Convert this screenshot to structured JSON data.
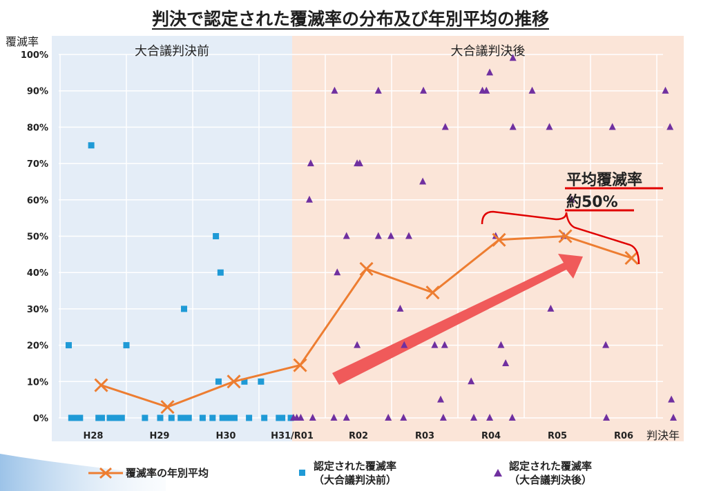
{
  "title": "判決で認定された覆滅率の分布及び年別平均の推移",
  "colors": {
    "panel_left": "#e4edf7",
    "panel_right": "#fbe5d8",
    "average_line": "#ed7d31",
    "square_marker": "#1f9ad6",
    "triangle_marker": "#7030a0",
    "grid": "#ffffff",
    "arrow": "#f05a5a",
    "bracket": "#e00000"
  },
  "legend": {
    "avg": "覆滅率の年別平均",
    "sq_line1": "認定された覆滅率",
    "sq_line2": "（大合議判決前）",
    "tri_line1": "認定された覆滅率",
    "tri_line2": "（大合議判決後）"
  },
  "annotation": {
    "line1": "平均覆滅率",
    "line2": "約50%"
  },
  "chart_data": {
    "type": "scatter",
    "title": "判決で認定された覆滅率の分布及び年別平均の推移",
    "ylabel": "覆滅率",
    "xlabel": "判決年",
    "categories": [
      "H28",
      "H29",
      "H30",
      "H31/R01",
      "R02",
      "R03",
      "R04",
      "R05",
      "R06"
    ],
    "ylim": [
      0,
      100
    ],
    "yticks": [
      "0%",
      "10%",
      "20%",
      "30%",
      "40%",
      "50%",
      "60%",
      "70%",
      "80%",
      "90%",
      "100%"
    ],
    "grid": true,
    "legend_position": "bottom",
    "periods": [
      {
        "label": "大合議判決前",
        "range": [
          -0.5,
          3.0
        ]
      },
      {
        "label": "大合議判決後",
        "range": [
          3.0,
          9.7
        ]
      }
    ],
    "series": [
      {
        "name": "覆滅率の年別平均",
        "type": "line",
        "marker": "x",
        "points": [
          [
            0.12,
            9
          ],
          [
            1.12,
            3
          ],
          [
            2.12,
            10
          ],
          [
            3.12,
            14.5
          ],
          [
            4.12,
            41
          ],
          [
            5.12,
            34.5
          ],
          [
            6.12,
            49
          ],
          [
            7.12,
            50
          ],
          [
            8.12,
            44
          ]
        ]
      },
      {
        "name": "認定された覆滅率（大合議判決前）",
        "type": "scatter",
        "marker": "square",
        "points": [
          [
            -0.37,
            20
          ],
          [
            -0.33,
            0
          ],
          [
            -0.3,
            0
          ],
          [
            -0.27,
            0
          ],
          [
            -0.24,
            0
          ],
          [
            -0.2,
            0
          ],
          [
            -0.03,
            75
          ],
          [
            0.08,
            0
          ],
          [
            0.13,
            0
          ],
          [
            0.25,
            0
          ],
          [
            0.32,
            0
          ],
          [
            0.38,
            0
          ],
          [
            0.43,
            0
          ],
          [
            0.5,
            20
          ],
          [
            0.78,
            0
          ],
          [
            1.01,
            0
          ],
          [
            1.18,
            0
          ],
          [
            1.32,
            0
          ],
          [
            1.37,
            30
          ],
          [
            1.4,
            0
          ],
          [
            1.44,
            0
          ],
          [
            1.65,
            0
          ],
          [
            1.8,
            0
          ],
          [
            1.85,
            50
          ],
          [
            1.89,
            10
          ],
          [
            1.92,
            40
          ],
          [
            1.95,
            0
          ],
          [
            2.03,
            0
          ],
          [
            2.08,
            0
          ],
          [
            2.13,
            0
          ],
          [
            2.28,
            10
          ],
          [
            2.35,
            0
          ],
          [
            2.53,
            10
          ],
          [
            2.58,
            0
          ],
          [
            2.8,
            0
          ],
          [
            2.85,
            0
          ],
          [
            2.98,
            0
          ]
        ]
      },
      {
        "name": "認定された覆滅率（大合議判決後）",
        "type": "scatter",
        "marker": "triangle",
        "points": [
          [
            3.02,
            0
          ],
          [
            3.07,
            0
          ],
          [
            3.13,
            0
          ],
          [
            3.26,
            60
          ],
          [
            3.28,
            70
          ],
          [
            3.31,
            0
          ],
          [
            3.63,
            0
          ],
          [
            3.64,
            90
          ],
          [
            3.68,
            40
          ],
          [
            3.82,
            0
          ],
          [
            3.82,
            50
          ],
          [
            3.98,
            20
          ],
          [
            3.98,
            70
          ],
          [
            4.02,
            70
          ],
          [
            4.3,
            90
          ],
          [
            4.3,
            50
          ],
          [
            4.45,
            0
          ],
          [
            4.49,
            50
          ],
          [
            4.63,
            30
          ],
          [
            4.68,
            0
          ],
          [
            4.69,
            20
          ],
          [
            4.76,
            50
          ],
          [
            4.98,
            90
          ],
          [
            4.97,
            65
          ],
          [
            5.15,
            20
          ],
          [
            5.24,
            5
          ],
          [
            5.28,
            0
          ],
          [
            5.3,
            20
          ],
          [
            5.31,
            80
          ],
          [
            5.7,
            10
          ],
          [
            5.74,
            0
          ],
          [
            5.87,
            90
          ],
          [
            5.93,
            90
          ],
          [
            5.98,
            95
          ],
          [
            5.98,
            0
          ],
          [
            6.07,
            50
          ],
          [
            6.22,
            15
          ],
          [
            6.15,
            20
          ],
          [
            6.33,
            80
          ],
          [
            6.32,
            0
          ],
          [
            6.33,
            99
          ],
          [
            6.62,
            90
          ],
          [
            6.88,
            80
          ],
          [
            6.9,
            30
          ],
          [
            7.1,
            50
          ],
          [
            7.21,
            60
          ],
          [
            7.73,
            20
          ],
          [
            7.74,
            0
          ],
          [
            7.83,
            80
          ],
          [
            8.63,
            90
          ],
          [
            8.7,
            80
          ],
          [
            8.72,
            5
          ],
          [
            8.75,
            0
          ]
        ]
      }
    ]
  }
}
